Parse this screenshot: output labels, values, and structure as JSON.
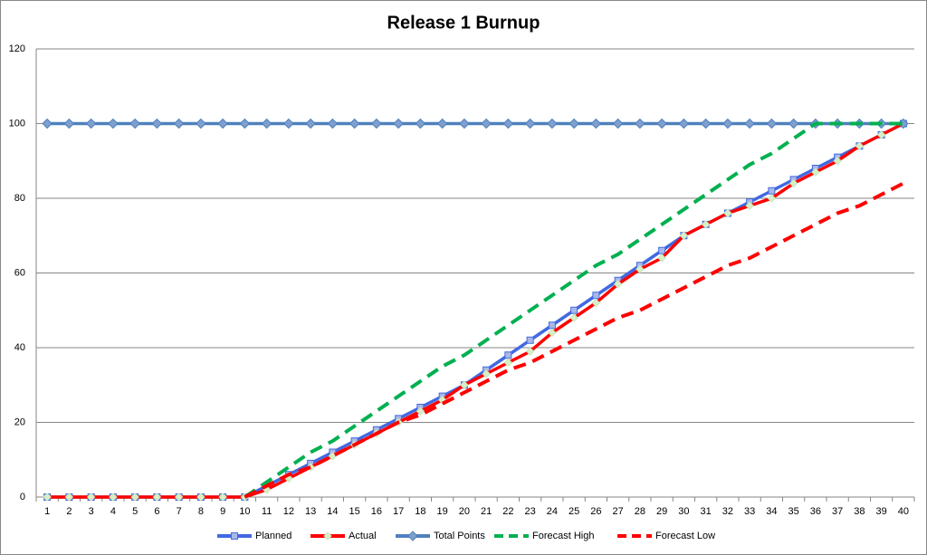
{
  "chart_data": {
    "type": "line",
    "title": "Release 1 Burnup",
    "categories": [
      "1",
      "2",
      "3",
      "4",
      "5",
      "6",
      "7",
      "8",
      "9",
      "10",
      "11",
      "12",
      "13",
      "14",
      "15",
      "16",
      "17",
      "18",
      "19",
      "20",
      "21",
      "22",
      "23",
      "24",
      "25",
      "26",
      "27",
      "28",
      "29",
      "30",
      "31",
      "32",
      "33",
      "34",
      "35",
      "36",
      "37",
      "38",
      "39",
      "40"
    ],
    "ylim": [
      0,
      120
    ],
    "yticks": [
      0,
      20,
      40,
      60,
      80,
      100,
      120
    ],
    "grid": true,
    "legend": "bottom",
    "series": [
      {
        "name": "Planned",
        "color": "#4169e1",
        "dash": false,
        "marker": "square",
        "values": [
          0,
          0,
          0,
          0,
          0,
          0,
          0,
          0,
          0,
          0,
          3,
          6,
          9,
          12,
          15,
          18,
          21,
          24,
          27,
          30,
          34,
          38,
          42,
          46,
          50,
          54,
          58,
          62,
          66,
          70,
          73,
          76,
          79,
          82,
          85,
          88,
          91,
          94,
          97,
          100
        ]
      },
      {
        "name": "Actual",
        "color": "#ff0000",
        "dash": false,
        "marker": "diamond-light",
        "values": [
          0,
          0,
          0,
          0,
          0,
          0,
          0,
          0,
          0,
          0,
          2,
          5,
          8,
          11,
          14,
          17,
          20,
          23,
          26,
          30,
          33,
          36,
          39,
          44,
          48,
          52,
          57,
          61,
          64,
          70,
          73,
          76,
          78,
          80,
          84,
          87,
          90,
          94,
          97,
          100
        ]
      },
      {
        "name": "Total Points",
        "color": "#4f81bd",
        "dash": false,
        "marker": "diamond",
        "values": [
          100,
          100,
          100,
          100,
          100,
          100,
          100,
          100,
          100,
          100,
          100,
          100,
          100,
          100,
          100,
          100,
          100,
          100,
          100,
          100,
          100,
          100,
          100,
          100,
          100,
          100,
          100,
          100,
          100,
          100,
          100,
          100,
          100,
          100,
          100,
          100,
          100,
          100,
          100,
          100
        ]
      },
      {
        "name": "Forecast High",
        "color": "#00b050",
        "dash": true,
        "marker": "none",
        "values": [
          null,
          null,
          null,
          null,
          null,
          null,
          null,
          null,
          null,
          0,
          4,
          8,
          12,
          15,
          19,
          23,
          27,
          31,
          35,
          38,
          42,
          46,
          50,
          54,
          58,
          62,
          65,
          69,
          73,
          77,
          81,
          85,
          89,
          92,
          96,
          100,
          100,
          100,
          100,
          100
        ]
      },
      {
        "name": "Forecast Low",
        "color": "#ff0000",
        "dash": true,
        "marker": "none",
        "values": [
          null,
          null,
          null,
          null,
          null,
          null,
          null,
          null,
          null,
          0,
          3,
          6,
          8,
          11,
          14,
          17,
          20,
          22,
          25,
          28,
          31,
          34,
          36,
          39,
          42,
          45,
          48,
          50,
          53,
          56,
          59,
          62,
          64,
          67,
          70,
          73,
          76,
          78,
          81,
          84
        ]
      }
    ]
  }
}
